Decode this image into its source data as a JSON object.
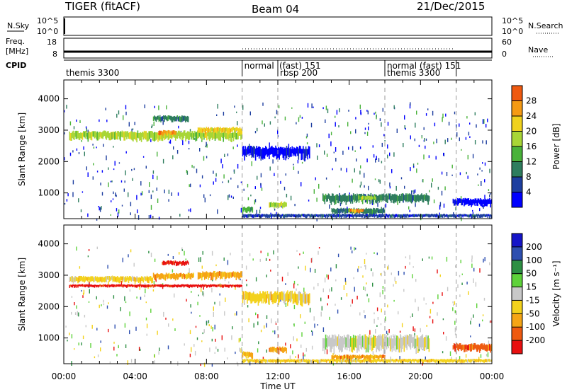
{
  "header": {
    "radar": "TIGER (fitACF)",
    "beam": "Beam 04",
    "date": "21/Dec/2015"
  },
  "nsky_panel": {
    "left_label": "N.Sky",
    "left_ticks": [
      "10^5",
      "10^0"
    ],
    "right_label": "N.Search",
    "right_ticks": [
      "10^5",
      "10^0"
    ]
  },
  "freq_panel": {
    "left_label_line1": "Freq.",
    "left_label_line2": "[MHz]",
    "left_ticks": [
      "18",
      "8"
    ],
    "right_label": "Nave",
    "right_ticks": [
      "60",
      "0"
    ]
  },
  "cpid_panel": {
    "label": "CPID",
    "modes": [
      {
        "text": "themis 3300",
        "start_hour": 0,
        "row": 1
      },
      {
        "text": "normal",
        "start_hour": 10,
        "row": 0
      },
      {
        "text": "(fast) 151",
        "start_hour": 12,
        "row": 0
      },
      {
        "text": "rbsp 200",
        "start_hour": 12,
        "row": 1
      },
      {
        "text": "normal (fast) 151",
        "start_hour": 18,
        "row": 0
      },
      {
        "text": "themis 3300",
        "start_hour": 18,
        "row": 1
      }
    ]
  },
  "colors": {
    "power": [
      "#0000ff",
      "#1e3fa0",
      "#2e7d5e",
      "#49b23a",
      "#a8d636",
      "#f0d21e",
      "#f59a14",
      "#ef5a10",
      "#ec1010"
    ],
    "velocity": [
      "#e81010",
      "#ee5a10",
      "#f5a515",
      "#f3d21c",
      "#c8c8c8",
      "#5ed23a",
      "#2d8f43",
      "#2e4fb0",
      "#1515c8"
    ]
  },
  "chart_data": [
    {
      "type": "heatmap",
      "name": "power",
      "ylabel": "Slant Range [km]",
      "ylim": [
        180,
        4600
      ],
      "yticks": [
        1000,
        2000,
        3000,
        4000
      ],
      "xlabel": "",
      "xlim": [
        0,
        24
      ],
      "colorbar": {
        "label": "Power [dB]",
        "ticks": [
          4,
          8,
          12,
          16,
          20,
          24,
          28
        ],
        "range": [
          0,
          32
        ]
      },
      "regions": [
        {
          "t0": 0.3,
          "t1": 10.0,
          "r0": 2650,
          "r1": 2950,
          "level": 4
        },
        {
          "t0": 5.3,
          "t1": 6.3,
          "r0": 2820,
          "r1": 2980,
          "level": 6
        },
        {
          "t0": 7.5,
          "t1": 10.0,
          "r0": 2880,
          "r1": 3080,
          "level": 5
        },
        {
          "t0": 5.0,
          "t1": 7.0,
          "r0": 3250,
          "r1": 3450,
          "level": 2
        },
        {
          "t0": 10.0,
          "t1": 13.8,
          "r0": 2050,
          "r1": 2450,
          "level": 0
        },
        {
          "t0": 10.0,
          "t1": 10.6,
          "r0": 350,
          "r1": 550,
          "level": 3
        },
        {
          "t0": 11.5,
          "t1": 12.5,
          "r0": 500,
          "r1": 700,
          "level": 4
        },
        {
          "t0": 14.5,
          "t1": 20.5,
          "r0": 650,
          "r1": 950,
          "level": 2
        },
        {
          "t0": 16.5,
          "t1": 17.5,
          "r0": 750,
          "r1": 900,
          "level": 4
        },
        {
          "t0": 15.0,
          "t1": 18.0,
          "r0": 300,
          "r1": 500,
          "level": 2
        },
        {
          "t0": 16.0,
          "t1": 16.8,
          "r0": 350,
          "r1": 480,
          "level": 6
        },
        {
          "t0": 21.8,
          "t1": 24.0,
          "r0": 550,
          "r1": 800,
          "level": 0
        },
        {
          "t0": 10.0,
          "t1": 24.0,
          "r0": 200,
          "r1": 320,
          "level": 1
        }
      ]
    },
    {
      "type": "heatmap",
      "name": "velocity",
      "ylabel": "Slant Range [km]",
      "ylim": [
        180,
        4600
      ],
      "yticks": [
        1000,
        2000,
        3000,
        4000
      ],
      "xlabel": "Time UT",
      "xlim": [
        0,
        24
      ],
      "xticks": [
        "00:00",
        "04:00",
        "08:00",
        "12:00",
        "16:00",
        "20:00",
        "00:00"
      ],
      "colorbar": {
        "label": "Velocity [m s⁻¹]",
        "ticks": [
          "-200",
          "-100",
          "-50",
          "-15",
          "15",
          "50",
          "100",
          "200"
        ]
      },
      "regions": [
        {
          "t0": 0.3,
          "t1": 5.0,
          "r0": 2750,
          "r1": 2950,
          "level": 3
        },
        {
          "t0": 5.0,
          "t1": 7.3,
          "r0": 2850,
          "r1": 3050,
          "level": 2
        },
        {
          "t0": 7.5,
          "t1": 10.0,
          "r0": 2850,
          "r1": 3100,
          "level": 2
        },
        {
          "t0": 5.5,
          "t1": 7.0,
          "r0": 3300,
          "r1": 3450,
          "level": 0
        },
        {
          "t0": 0.3,
          "t1": 10.0,
          "r0": 2600,
          "r1": 2700,
          "level": 0
        },
        {
          "t0": 10.0,
          "t1": 13.8,
          "r0": 2050,
          "r1": 2450,
          "level": 3
        },
        {
          "t0": 10.0,
          "t1": 10.6,
          "r0": 350,
          "r1": 550,
          "level": 2
        },
        {
          "t0": 11.5,
          "t1": 12.5,
          "r0": 500,
          "r1": 700,
          "level": 2
        },
        {
          "t0": 14.5,
          "t1": 20.5,
          "r0": 550,
          "r1": 1050,
          "level": 4
        },
        {
          "t0": 15.0,
          "t1": 18.0,
          "r0": 300,
          "r1": 450,
          "level": 2
        },
        {
          "t0": 21.8,
          "t1": 24.0,
          "r0": 550,
          "r1": 800,
          "level": 1
        },
        {
          "t0": 10.0,
          "t1": 24.0,
          "r0": 200,
          "r1": 320,
          "level": 3
        }
      ]
    }
  ]
}
